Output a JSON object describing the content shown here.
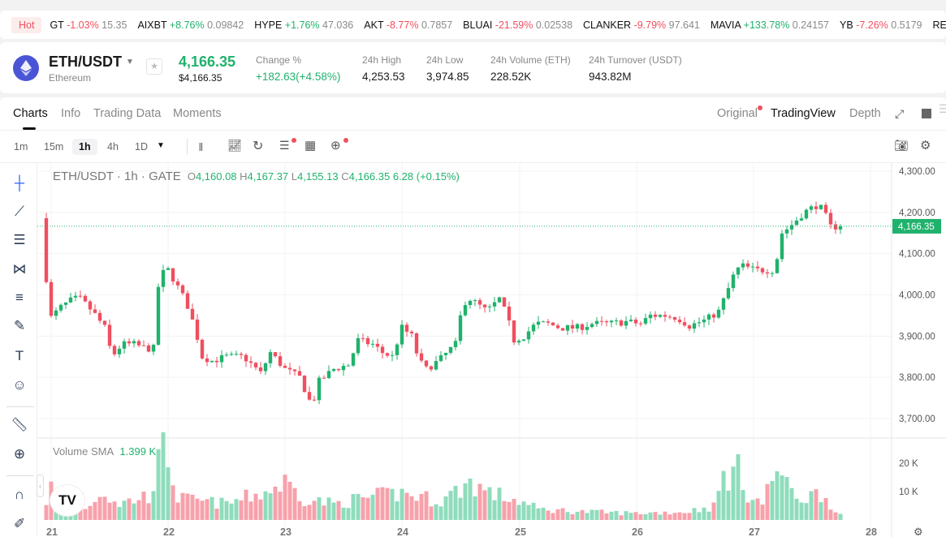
{
  "ticker": {
    "hot": "Hot",
    "items": [
      {
        "sym": "GT",
        "chg": "-1.03%",
        "price": "15.35",
        "dir": "dn"
      },
      {
        "sym": "AIXBT",
        "chg": "+8.76%",
        "price": "0.09842",
        "dir": "up"
      },
      {
        "sym": "HYPE",
        "chg": "+1.76%",
        "price": "47.036",
        "dir": "up"
      },
      {
        "sym": "AKT",
        "chg": "-8.77%",
        "price": "0.7857",
        "dir": "dn"
      },
      {
        "sym": "BLUAI",
        "chg": "-21.59%",
        "price": "0.02538",
        "dir": "dn"
      },
      {
        "sym": "CLANKER",
        "chg": "-9.79%",
        "price": "97.641",
        "dir": "dn"
      },
      {
        "sym": "MAVIA",
        "chg": "+133.78%",
        "price": "0.24157",
        "dir": "up"
      },
      {
        "sym": "YB",
        "chg": "-7.26%",
        "price": "0.5179",
        "dir": "dn"
      },
      {
        "sym": "RECA",
        "chg": "",
        "price": "",
        "dir": "up"
      }
    ]
  },
  "header": {
    "pair": "ETH/USDT",
    "name": "Ethereum",
    "price": "4,166.35",
    "usd_price": "$4,166.35",
    "stats": [
      {
        "label": "Change %",
        "value": "+182.63(+4.58%)"
      },
      {
        "label": "24h High",
        "value": "4,253.53"
      },
      {
        "label": "24h Low",
        "value": "3,974.85"
      },
      {
        "label": "24h Volume (ETH)",
        "value": "228.52K"
      },
      {
        "label": "24h Turnover (USDT)",
        "value": "943.82M"
      }
    ]
  },
  "tabs": [
    "Charts",
    "Info",
    "Trading Data",
    "Moments"
  ],
  "views": [
    "Original",
    "TradingView",
    "Depth"
  ],
  "timeframes": [
    "1m",
    "15m",
    "1h",
    "4h",
    "1D"
  ],
  "legend": {
    "title": "ETH/USDT · 1h · GATE",
    "o": "4,160.08",
    "h": "4,167.37",
    "l": "4,155.13",
    "c": "4,166.35",
    "chg": "6.28 (+0.15%)"
  },
  "volume_legend": {
    "label": "Volume SMA",
    "value": "1.399 K"
  },
  "colors": {
    "up": "#20b26c",
    "down": "#ef4f5f",
    "up_vol": "#8fdcbc",
    "down_vol": "#f7a1ab"
  },
  "chart_data": {
    "type": "candlestick",
    "title": "ETH/USDT · 1h · GATE",
    "ylim": [
      3680,
      4320
    ],
    "y_ticks": [
      "4,300.00",
      "4,200.00",
      "4,100.00",
      "4,000.00",
      "3,900.00",
      "3,800.00",
      "3,700.00"
    ],
    "y_tick_values": [
      4300,
      4200,
      4100,
      4000,
      3900,
      3800,
      3700
    ],
    "last_price": "4,166.35",
    "last_price_value": 4166.35,
    "x_ticks": [
      "21",
      "22",
      "23",
      "24",
      "25",
      "26",
      "27",
      "28"
    ],
    "x_unit": "hours since day 21 00:00",
    "close_keypoints": [
      [
        -1,
        4040
      ],
      [
        0,
        3945
      ],
      [
        2,
        3970
      ],
      [
        4.5,
        3990
      ],
      [
        6,
        3990
      ],
      [
        8.5,
        3960
      ],
      [
        11,
        3920
      ],
      [
        12.5,
        3850
      ],
      [
        14.5,
        3880
      ],
      [
        17,
        3880
      ],
      [
        19.5,
        3870
      ],
      [
        21,
        3870
      ],
      [
        22,
        4020
      ],
      [
        23.5,
        4070
      ],
      [
        25,
        4040
      ],
      [
        27.8,
        3980
      ],
      [
        29.5,
        3920
      ],
      [
        31,
        3850
      ],
      [
        33,
        3840
      ],
      [
        36,
        3850
      ],
      [
        39.5,
        3850
      ],
      [
        43,
        3810
      ],
      [
        45,
        3860
      ],
      [
        48,
        3820
      ],
      [
        51,
        3800
      ],
      [
        53.5,
        3730
      ],
      [
        55,
        3790
      ],
      [
        58,
        3820
      ],
      [
        61,
        3830
      ],
      [
        63,
        3890
      ],
      [
        66,
        3880
      ],
      [
        68,
        3860
      ],
      [
        70,
        3850
      ],
      [
        72,
        3920
      ],
      [
        74,
        3900
      ],
      [
        75.5,
        3840
      ],
      [
        77,
        3820
      ],
      [
        79.5,
        3840
      ],
      [
        83,
        3880
      ],
      [
        84.5,
        3980
      ],
      [
        86,
        3990
      ],
      [
        89.5,
        3960
      ],
      [
        92,
        3990
      ],
      [
        93.5,
        3950
      ],
      [
        95,
        3890
      ],
      [
        97,
        3900
      ],
      [
        99.5,
        3930
      ],
      [
        102,
        3930
      ],
      [
        104.5,
        3920
      ],
      [
        108,
        3920
      ],
      [
        111,
        3930
      ],
      [
        114.5,
        3930
      ],
      [
        118,
        3935
      ],
      [
        121,
        3930
      ],
      [
        123,
        3950
      ],
      [
        126,
        3950
      ],
      [
        128.5,
        3945
      ],
      [
        131,
        3925
      ],
      [
        134.5,
        3940
      ],
      [
        137,
        3960
      ],
      [
        138.5,
        4000
      ],
      [
        140.5,
        4060
      ],
      [
        142,
        4070
      ],
      [
        144.5,
        4060
      ],
      [
        147,
        4060
      ],
      [
        148.5,
        4060
      ],
      [
        150,
        4150
      ],
      [
        152,
        4170
      ],
      [
        154.5,
        4200
      ],
      [
        156,
        4210
      ],
      [
        157.5,
        4220
      ],
      [
        159,
        4190
      ],
      [
        160,
        4165
      ],
      [
        162,
        4166
      ]
    ],
    "volume_ticks": [
      "20 K",
      "10 K"
    ],
    "volume_tick_values": [
      20,
      10
    ],
    "volume_keypoints_k": [
      [
        -1,
        7
      ],
      [
        0,
        12
      ],
      [
        3,
        4
      ],
      [
        8,
        5
      ],
      [
        10,
        11
      ],
      [
        14,
        6
      ],
      [
        20,
        9
      ],
      [
        22,
        20
      ],
      [
        23,
        25
      ],
      [
        24,
        24
      ],
      [
        26,
        8
      ],
      [
        30,
        7
      ],
      [
        36,
        6
      ],
      [
        45,
        11
      ],
      [
        48,
        14
      ],
      [
        52,
        8
      ],
      [
        58,
        6
      ],
      [
        64,
        8
      ],
      [
        72,
        10
      ],
      [
        80,
        7
      ],
      [
        86,
        14
      ],
      [
        90,
        10
      ],
      [
        96,
        7
      ],
      [
        100,
        4
      ],
      [
        110,
        3
      ],
      [
        120,
        2.5
      ],
      [
        130,
        3
      ],
      [
        136,
        5
      ],
      [
        138,
        16
      ],
      [
        141,
        18
      ],
      [
        143,
        10
      ],
      [
        146,
        6
      ],
      [
        149,
        20
      ],
      [
        151,
        12
      ],
      [
        154,
        8
      ],
      [
        158,
        10
      ],
      [
        162,
        2
      ]
    ]
  }
}
